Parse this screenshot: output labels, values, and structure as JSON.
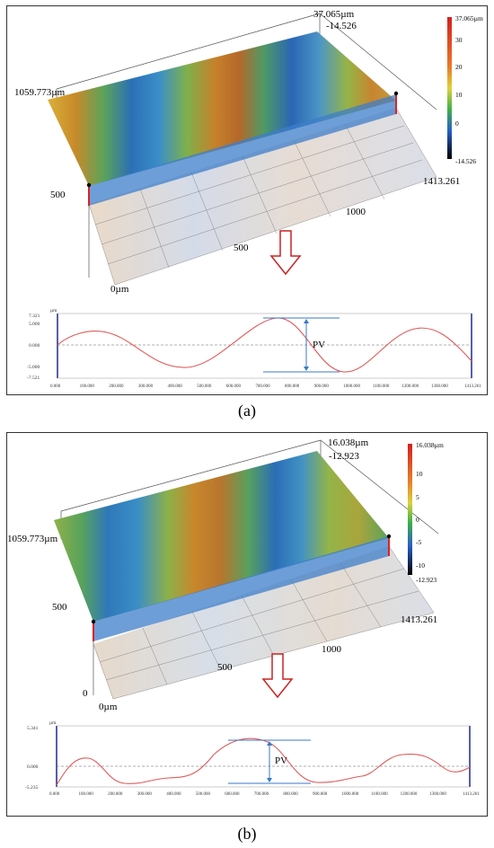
{
  "figure_a": {
    "caption": "(a)",
    "surface": {
      "z_max_label": "37.065µm",
      "z_min_label": "-14.526",
      "y_max_label": "1059.773µm",
      "y_mid_label": "500",
      "x_origin_label": "0µm",
      "x_mid_label": "500",
      "x_1000_label": "1000",
      "x_max_label": "1413.261",
      "colorbar_ticks": [
        "37.065µm",
        "30",
        "20",
        "10",
        "0",
        "-14.526"
      ]
    },
    "profile": {
      "y_unit": "µm",
      "y_ticks": [
        "7.321",
        "5.000",
        "0.000",
        "-5.000",
        "-7.521"
      ],
      "x_ticks": [
        "0.000",
        "100.000",
        "200.000",
        "300.000",
        "400.000",
        "500.000",
        "600.000",
        "700.000",
        "800.000",
        "900.000",
        "1000.000",
        "1100.000",
        "1200.000",
        "1300.000",
        "1413.261"
      ],
      "pv_label": "PV"
    }
  },
  "figure_b": {
    "caption": "(b)",
    "surface": {
      "z_max_label": "16.038µm",
      "z_min_label": "-12.923",
      "y_max_label": "1059.773µm",
      "y_mid_label": "500",
      "y_zero_label": "0",
      "x_origin_label": "0µm",
      "x_mid_label": "500",
      "x_1000_label": "1000",
      "x_max_label": "1413.261",
      "colorbar_ticks": [
        "16.038µm",
        "10",
        "5",
        "0",
        "-5",
        "-10",
        "-12.923"
      ]
    },
    "profile": {
      "y_unit": "µm",
      "y_ticks": [
        "5.341",
        "0.000",
        "-5.235"
      ],
      "x_ticks": [
        "0.000",
        "100.000",
        "200.000",
        "300.000",
        "400.000",
        "500.000",
        "600.000",
        "700.000",
        "800.000",
        "900.000",
        "1000.000",
        "1100.000",
        "1200.000",
        "1300.000",
        "1413.261"
      ],
      "pv_label": "PV"
    }
  },
  "colors": {
    "profile_line": "#e05a5a",
    "pv_marker": "#3a78c8",
    "arrow": "#cc2222",
    "frame": "#1a2a8a"
  }
}
